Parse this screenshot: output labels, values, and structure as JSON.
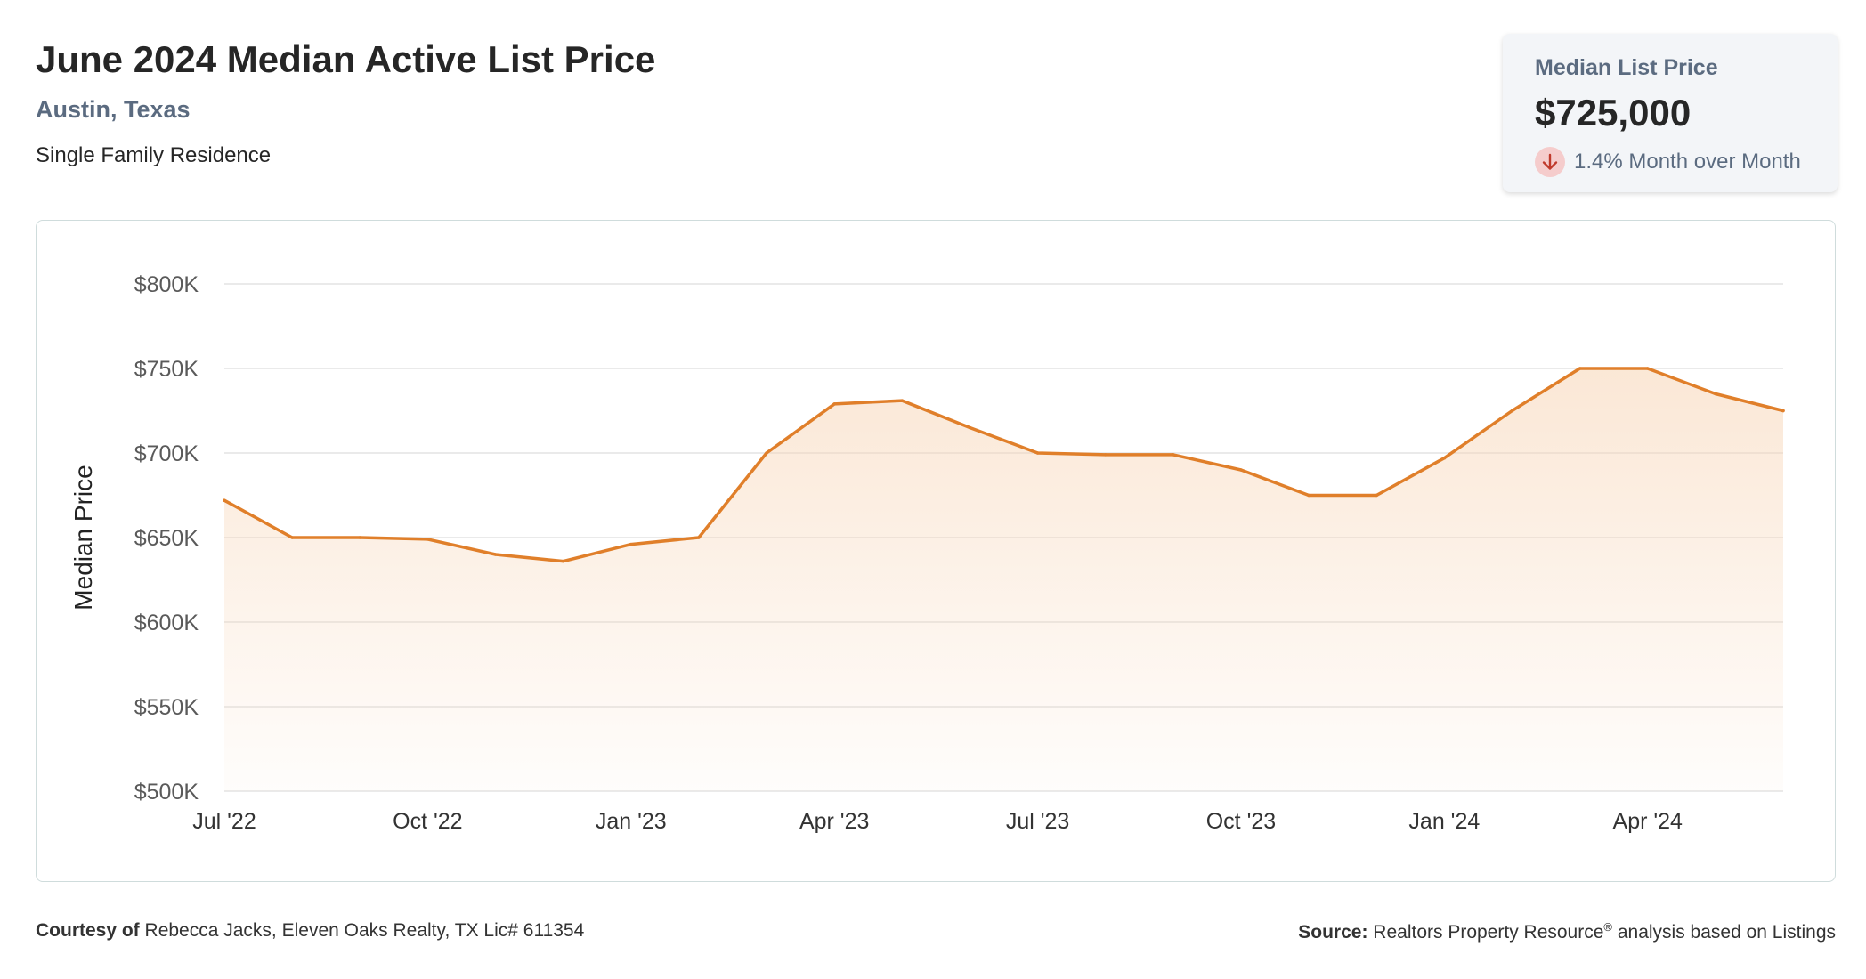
{
  "header": {
    "title": "June 2024 Median Active List Price",
    "location": "Austin, Texas",
    "property_type": "Single Family Residence"
  },
  "stat_card": {
    "label": "Median List Price",
    "value": "$725,000",
    "change_text": "1.4% Month over Month",
    "direction_icon": "arrow-down-icon"
  },
  "footer": {
    "courtesy_label": "Courtesy of",
    "courtesy_text": "Rebecca Jacks, Eleven Oaks Realty, TX Lic# 611354",
    "source_label": "Source:",
    "source_name": "Realtors Property Resource",
    "source_mark": "®",
    "source_text": "analysis based on Listings"
  },
  "colors": {
    "line": "#e07f2a",
    "area_top": "#f7d4b4",
    "grid": "#e3e3e3",
    "axis_text": "#5a5a5a",
    "down_icon_bg": "#f5cccc",
    "down_icon": "#c0392b"
  },
  "chart_data": {
    "type": "area",
    "ylabel": "Median Price",
    "ylim": [
      500000,
      800000
    ],
    "yticks": [
      500000,
      550000,
      600000,
      650000,
      700000,
      750000,
      800000
    ],
    "ytick_labels": [
      "$500K",
      "$550K",
      "$600K",
      "$650K",
      "$700K",
      "$750K",
      "$800K"
    ],
    "x": [
      "Jul '22",
      "Aug '22",
      "Sep '22",
      "Oct '22",
      "Nov '22",
      "Dec '22",
      "Jan '23",
      "Feb '23",
      "Mar '23",
      "Apr '23",
      "May '23",
      "Jun '23",
      "Jul '23",
      "Aug '23",
      "Sep '23",
      "Oct '23",
      "Nov '23",
      "Dec '23",
      "Jan '24",
      "Feb '24",
      "Mar '24",
      "Apr '24",
      "May '24",
      "Jun '24"
    ],
    "xtick_labels": [
      "Jul '22",
      "Oct '22",
      "Jan '23",
      "Apr '23",
      "Jul '23",
      "Oct '23",
      "Jan '24",
      "Apr '24"
    ],
    "series": [
      {
        "values": [
          672000,
          650000,
          650000,
          649000,
          640000,
          636000,
          646000,
          650000,
          700000,
          729000,
          731000,
          715000,
          700000,
          699000,
          699000,
          690000,
          675000,
          675000,
          697000,
          725000,
          750000,
          750000,
          735000,
          725000
        ]
      }
    ],
    "grid": true,
    "legend": "none"
  }
}
